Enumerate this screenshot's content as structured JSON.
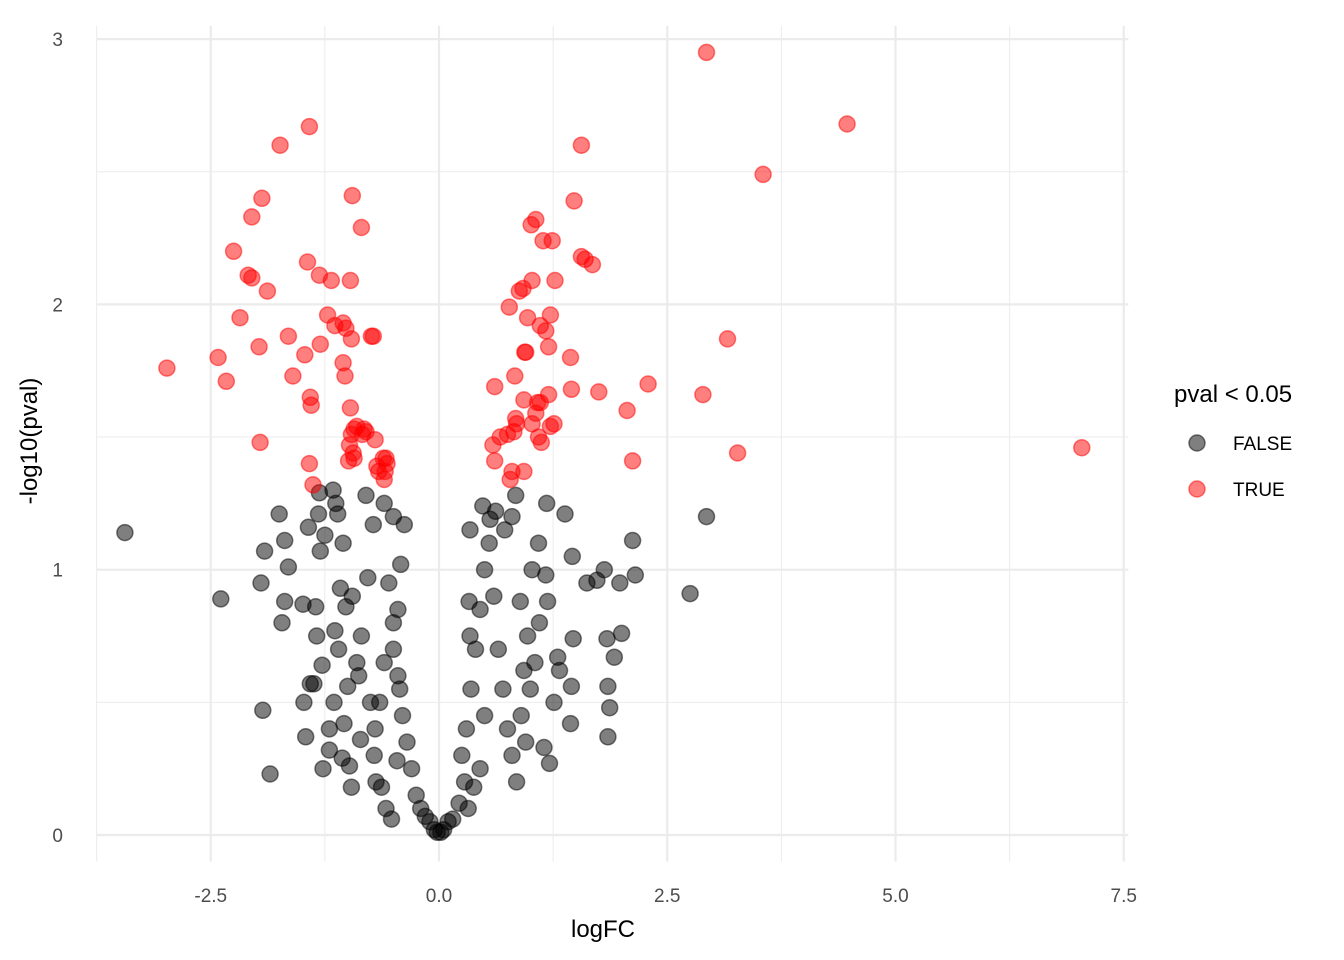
{
  "chart_data": {
    "type": "scatter",
    "title": "",
    "xlabel": "logFC",
    "ylabel": "-log10(pval)",
    "xlim": [
      -3.75,
      7.55
    ],
    "ylim": [
      -0.1,
      3.05
    ],
    "x_ticks": [
      -2.5,
      0.0,
      2.5,
      5.0,
      7.5
    ],
    "x_tick_labels": [
      "-2.5",
      "0.0",
      "2.5",
      "5.0",
      "7.5"
    ],
    "y_ticks": [
      0,
      1,
      2,
      3
    ],
    "y_tick_labels": [
      "0",
      "1",
      "2",
      "3"
    ],
    "grid": true,
    "legend": {
      "title": "pval < 0.05",
      "placement": "right",
      "entries": [
        {
          "label": "FALSE",
          "color": "#000000"
        },
        {
          "label": "TRUE",
          "color": "#ff0000"
        }
      ]
    },
    "series": [
      {
        "name": "TRUE",
        "color": "#ff0000",
        "opacity": 0.5,
        "points": [
          [
            2.93,
            2.95
          ],
          [
            4.47,
            2.68
          ],
          [
            -1.42,
            2.67
          ],
          [
            -1.74,
            2.6
          ],
          [
            1.56,
            2.6
          ],
          [
            3.55,
            2.49
          ],
          [
            -1.94,
            2.4
          ],
          [
            -0.95,
            2.41
          ],
          [
            1.48,
            2.39
          ],
          [
            -2.05,
            2.33
          ],
          [
            1.06,
            2.32
          ],
          [
            1.01,
            2.3
          ],
          [
            -0.85,
            2.29
          ],
          [
            1.14,
            2.24
          ],
          [
            1.24,
            2.24
          ],
          [
            -2.25,
            2.2
          ],
          [
            -1.44,
            2.16
          ],
          [
            1.56,
            2.18
          ],
          [
            1.6,
            2.17
          ],
          [
            1.68,
            2.15
          ],
          [
            -2.09,
            2.11
          ],
          [
            -2.05,
            2.1
          ],
          [
            -1.31,
            2.11
          ],
          [
            -1.18,
            2.09
          ],
          [
            -0.97,
            2.09
          ],
          [
            1.27,
            2.09
          ],
          [
            1.02,
            2.09
          ],
          [
            0.92,
            2.06
          ],
          [
            0.88,
            2.05
          ],
          [
            -1.88,
            2.05
          ],
          [
            0.77,
            1.99
          ],
          [
            -2.18,
            1.95
          ],
          [
            -1.22,
            1.96
          ],
          [
            -1.14,
            1.92
          ],
          [
            -1.05,
            1.93
          ],
          [
            -1.02,
            1.91
          ],
          [
            0.97,
            1.95
          ],
          [
            1.22,
            1.96
          ],
          [
            1.11,
            1.92
          ],
          [
            1.17,
            1.9
          ],
          [
            -1.65,
            1.88
          ],
          [
            -0.96,
            1.87
          ],
          [
            -0.74,
            1.88
          ],
          [
            -0.72,
            1.88
          ],
          [
            -1.3,
            1.85
          ],
          [
            3.16,
            1.87
          ],
          [
            1.2,
            1.84
          ],
          [
            -1.97,
            1.84
          ],
          [
            -1.47,
            1.81
          ],
          [
            -1.05,
            1.78
          ],
          [
            0.94,
            1.82
          ],
          [
            0.95,
            1.82
          ],
          [
            1.44,
            1.8
          ],
          [
            -2.42,
            1.8
          ],
          [
            -2.98,
            1.76
          ],
          [
            -1.6,
            1.73
          ],
          [
            -1.03,
            1.73
          ],
          [
            0.83,
            1.73
          ],
          [
            -2.33,
            1.71
          ],
          [
            2.29,
            1.7
          ],
          [
            0.61,
            1.69
          ],
          [
            1.45,
            1.68
          ],
          [
            1.75,
            1.67
          ],
          [
            2.89,
            1.66
          ],
          [
            -1.41,
            1.65
          ],
          [
            0.93,
            1.64
          ],
          [
            1.2,
            1.66
          ],
          [
            -1.4,
            1.62
          ],
          [
            1.08,
            1.63
          ],
          [
            1.11,
            1.63
          ],
          [
            -0.97,
            1.61
          ],
          [
            2.06,
            1.6
          ],
          [
            1.06,
            1.59
          ],
          [
            0.84,
            1.57
          ],
          [
            0.85,
            1.55
          ],
          [
            1.02,
            1.55
          ],
          [
            1.22,
            1.54
          ],
          [
            1.26,
            1.55
          ],
          [
            -0.9,
            1.54
          ],
          [
            -0.82,
            1.53
          ],
          [
            -0.8,
            1.52
          ],
          [
            -0.93,
            1.53
          ],
          [
            -0.96,
            1.51
          ],
          [
            -0.84,
            1.51
          ],
          [
            0.75,
            1.51
          ],
          [
            0.82,
            1.52
          ],
          [
            -0.7,
            1.49
          ],
          [
            0.67,
            1.5
          ],
          [
            1.09,
            1.5
          ],
          [
            1.12,
            1.48
          ],
          [
            -1.96,
            1.48
          ],
          [
            0.59,
            1.47
          ],
          [
            -0.98,
            1.47
          ],
          [
            -0.94,
            1.44
          ],
          [
            3.27,
            1.44
          ],
          [
            -0.93,
            1.42
          ],
          [
            -0.99,
            1.41
          ],
          [
            -0.61,
            1.42
          ],
          [
            -0.58,
            1.42
          ],
          [
            -0.57,
            1.4
          ],
          [
            2.12,
            1.41
          ],
          [
            7.04,
            1.46
          ],
          [
            0.61,
            1.41
          ],
          [
            -0.68,
            1.39
          ],
          [
            -1.42,
            1.4
          ],
          [
            -0.59,
            1.37
          ],
          [
            -0.66,
            1.37
          ],
          [
            0.8,
            1.37
          ],
          [
            0.93,
            1.37
          ],
          [
            0.78,
            1.34
          ],
          [
            -0.6,
            1.34
          ],
          [
            -1.38,
            1.32
          ]
        ]
      },
      {
        "name": "FALSE",
        "color": "#000000",
        "opacity": 0.5,
        "points": [
          [
            -3.44,
            1.14
          ],
          [
            -2.39,
            0.89
          ],
          [
            2.93,
            1.2
          ],
          [
            2.75,
            0.91
          ],
          [
            -1.93,
            0.47
          ],
          [
            -1.85,
            0.23
          ],
          [
            -1.91,
            1.07
          ],
          [
            -1.95,
            0.95
          ],
          [
            -1.69,
            0.88
          ],
          [
            -1.72,
            0.8
          ],
          [
            -1.69,
            1.11
          ],
          [
            -1.65,
            1.01
          ],
          [
            -1.75,
            1.21
          ],
          [
            -1.49,
            0.87
          ],
          [
            -1.48,
            0.5
          ],
          [
            -1.46,
            0.37
          ],
          [
            -1.41,
            0.57
          ],
          [
            -1.37,
            0.57
          ],
          [
            -1.43,
            1.16
          ],
          [
            -1.35,
            0.86
          ],
          [
            -1.32,
            1.21
          ],
          [
            -1.3,
            1.07
          ],
          [
            -1.31,
            1.29
          ],
          [
            -1.25,
            1.13
          ],
          [
            -1.34,
            0.75
          ],
          [
            -1.28,
            0.64
          ],
          [
            -1.27,
            0.25
          ],
          [
            -1.2,
            0.32
          ],
          [
            -1.13,
            1.25
          ],
          [
            -1.16,
            1.3
          ],
          [
            -1.11,
            1.21
          ],
          [
            -1.05,
            1.1
          ],
          [
            -1.08,
            0.93
          ],
          [
            -1.14,
            0.77
          ],
          [
            -1.02,
            0.86
          ],
          [
            -1.0,
            0.56
          ],
          [
            -1.04,
            0.42
          ],
          [
            -0.98,
            0.26
          ],
          [
            -0.96,
            0.18
          ],
          [
            -1.06,
            0.29
          ],
          [
            -0.88,
            0.6
          ],
          [
            -0.86,
            0.36
          ],
          [
            2.12,
            1.11
          ],
          [
            2.15,
            0.98
          ],
          [
            1.98,
            0.95
          ],
          [
            1.84,
            0.74
          ],
          [
            1.85,
            0.56
          ],
          [
            1.87,
            0.48
          ],
          [
            1.85,
            0.37
          ],
          [
            2.0,
            0.76
          ],
          [
            1.92,
            0.67
          ],
          [
            1.81,
            1.0
          ],
          [
            1.73,
            0.96
          ],
          [
            1.62,
            0.95
          ],
          [
            1.46,
            1.05
          ],
          [
            1.38,
            1.21
          ],
          [
            1.47,
            0.74
          ],
          [
            1.3,
            0.67
          ],
          [
            1.32,
            0.62
          ],
          [
            1.45,
            0.56
          ],
          [
            1.44,
            0.42
          ],
          [
            1.21,
            0.27
          ],
          [
            1.15,
            0.33
          ],
          [
            1.19,
            0.88
          ],
          [
            1.17,
            0.98
          ],
          [
            1.26,
            0.5
          ],
          [
            1.18,
            1.25
          ],
          [
            1.09,
            1.1
          ],
          [
            1.02,
            1.0
          ],
          [
            0.97,
            0.75
          ],
          [
            0.93,
            0.62
          ],
          [
            0.89,
            0.88
          ],
          [
            0.84,
            1.28
          ],
          [
            0.8,
            1.2
          ],
          [
            0.72,
            1.15
          ],
          [
            0.62,
            1.22
          ],
          [
            0.56,
            1.19
          ],
          [
            0.48,
            1.24
          ],
          [
            0.34,
            1.15
          ],
          [
            0.34,
            0.75
          ],
          [
            0.33,
            0.88
          ],
          [
            -0.78,
            0.97
          ],
          [
            -0.75,
            0.5
          ],
          [
            -0.71,
            0.3
          ],
          [
            -0.69,
            0.2
          ],
          [
            -0.63,
            0.18
          ],
          [
            -0.58,
            0.1
          ],
          [
            -0.52,
            0.06
          ],
          [
            -0.46,
            0.28
          ],
          [
            -0.43,
            0.55
          ],
          [
            -0.5,
            0.7
          ],
          [
            -0.45,
            0.85
          ],
          [
            -0.42,
            1.02
          ],
          [
            -0.38,
            1.17
          ],
          [
            -0.6,
            1.25
          ],
          [
            -0.5,
            1.2
          ],
          [
            -0.72,
            1.17
          ],
          [
            -0.8,
            1.28
          ],
          [
            0.5,
            0.45
          ],
          [
            0.45,
            0.25
          ],
          [
            0.38,
            0.18
          ],
          [
            0.32,
            0.1
          ],
          [
            0.28,
            0.2
          ],
          [
            0.22,
            0.12
          ],
          [
            0.15,
            0.06
          ],
          [
            0.1,
            0.05
          ],
          [
            0.05,
            0.02
          ],
          [
            0.02,
            0.01
          ],
          [
            -0.02,
            0.01
          ],
          [
            -0.05,
            0.02
          ],
          [
            -0.1,
            0.05
          ],
          [
            -0.15,
            0.07
          ],
          [
            -0.2,
            0.1
          ],
          [
            -0.25,
            0.15
          ],
          [
            -0.3,
            0.25
          ],
          [
            -0.35,
            0.35
          ],
          [
            -0.4,
            0.45
          ],
          [
            -0.45,
            0.6
          ],
          [
            -0.5,
            0.8
          ],
          [
            -0.55,
            0.95
          ],
          [
            0.25,
            0.3
          ],
          [
            0.3,
            0.4
          ],
          [
            0.35,
            0.55
          ],
          [
            0.4,
            0.7
          ],
          [
            0.45,
            0.85
          ],
          [
            0.5,
            1.0
          ],
          [
            0.55,
            1.1
          ],
          [
            0.6,
            0.9
          ],
          [
            0.65,
            0.7
          ],
          [
            0.7,
            0.55
          ],
          [
            0.75,
            0.4
          ],
          [
            0.8,
            0.3
          ],
          [
            0.85,
            0.2
          ],
          [
            -0.6,
            0.65
          ],
          [
            -0.65,
            0.5
          ],
          [
            -0.7,
            0.4
          ],
          [
            -0.85,
            0.75
          ],
          [
            -0.9,
            0.65
          ],
          [
            -0.95,
            0.9
          ],
          [
            -1.1,
            0.7
          ],
          [
            -1.15,
            0.5
          ],
          [
            -1.2,
            0.4
          ],
          [
            0.9,
            0.45
          ],
          [
            0.95,
            0.35
          ],
          [
            1.0,
            0.55
          ],
          [
            1.05,
            0.65
          ],
          [
            1.1,
            0.8
          ]
        ]
      }
    ]
  }
}
